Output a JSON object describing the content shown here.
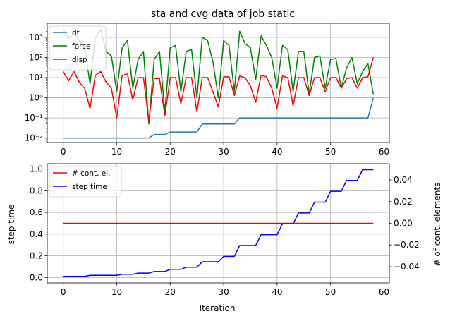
{
  "chart_data": [
    {
      "type": "line",
      "title": "sta and cvg data of job static",
      "xlabel": "",
      "ylabel": "",
      "yscale": "log",
      "xlim": [
        -3,
        61
      ],
      "ylim": [
        0.006,
        5000
      ],
      "grid": true,
      "legend_placement": "top-left",
      "x_ticks": [
        0,
        10,
        20,
        30,
        40,
        50,
        60
      ],
      "y_ticks": [
        0.01,
        0.1,
        1,
        10,
        100,
        1000
      ],
      "y_tick_labels": [
        "10⁻²",
        "10⁻¹",
        "10⁰",
        "10¹",
        "10²",
        "10³"
      ],
      "series": [
        {
          "name": "dt",
          "color": "#1f77b4",
          "x": [
            0,
            14,
            15,
            16,
            17,
            18,
            19,
            20,
            21,
            22,
            23,
            24,
            25,
            26,
            27,
            28,
            29,
            30,
            31,
            32,
            33,
            34,
            57,
            58
          ],
          "y": [
            0.01,
            0.01,
            0.01,
            0.01,
            0.015,
            0.015,
            0.015,
            0.02,
            0.02,
            0.02,
            0.02,
            0.02,
            0.02,
            0.05,
            0.05,
            0.05,
            0.05,
            0.05,
            0.05,
            0.05,
            0.1,
            0.1,
            0.1,
            1
          ]
        },
        {
          "name": "force",
          "color": "#008000",
          "x": [
            0,
            1,
            2,
            3,
            4,
            5,
            6,
            7,
            8,
            9,
            10,
            11,
            12,
            13,
            14,
            15,
            16,
            17,
            18,
            19,
            20,
            21,
            22,
            23,
            24,
            25,
            26,
            27,
            28,
            29,
            30,
            31,
            32,
            33,
            34,
            35,
            36,
            37,
            38,
            39,
            40,
            41,
            42,
            43,
            44,
            45,
            46,
            47,
            48,
            49,
            50,
            51,
            52,
            53,
            54,
            55,
            56,
            57,
            58
          ],
          "y": [
            2500,
            900,
            1600,
            700,
            300,
            5,
            1000,
            2500,
            200,
            120,
            2,
            300,
            700,
            3,
            80,
            200,
            0.05,
            80,
            200,
            0.2,
            300,
            400,
            2,
            200,
            250,
            1,
            1000,
            700,
            60,
            1,
            700,
            400,
            2,
            2000,
            500,
            300,
            8,
            1200,
            400,
            100,
            3,
            400,
            250,
            2,
            200,
            200,
            1.5,
            100,
            120,
            3,
            80,
            90,
            3,
            30,
            100,
            5,
            20,
            50,
            1.5
          ]
        },
        {
          "name": "disp",
          "color": "#ff0000",
          "x": [
            0,
            1,
            2,
            3,
            4,
            5,
            6,
            7,
            8,
            9,
            10,
            11,
            12,
            13,
            14,
            15,
            16,
            17,
            18,
            19,
            20,
            21,
            22,
            23,
            24,
            25,
            26,
            27,
            28,
            29,
            30,
            31,
            32,
            33,
            34,
            35,
            36,
            37,
            38,
            39,
            40,
            41,
            42,
            43,
            44,
            45,
            46,
            47,
            48,
            49,
            50,
            51,
            52,
            53,
            54,
            55,
            56,
            57,
            58
          ],
          "y": [
            20,
            7,
            20,
            6,
            3,
            0.3,
            13,
            20,
            6,
            3,
            0.1,
            13,
            15,
            0.8,
            10,
            10,
            0.07,
            9,
            9,
            0.13,
            10,
            10,
            0.5,
            10,
            10,
            0.2,
            10,
            10,
            2,
            0.35,
            11,
            11,
            1.3,
            12,
            10,
            4,
            0.6,
            13,
            11,
            3,
            0.3,
            12,
            10,
            0.4,
            10,
            10,
            1.3,
            10,
            10,
            2,
            10,
            10,
            3,
            9,
            10,
            3,
            10,
            11,
            100
          ]
        }
      ]
    },
    {
      "type": "line",
      "title": "",
      "xlabel": "Iteration",
      "ylabel": "step time",
      "y2label": "# of cont. elements",
      "xlim": [
        -3,
        61
      ],
      "ylim": [
        -0.05,
        1.05
      ],
      "y2lim": [
        -0.055,
        0.055
      ],
      "grid": true,
      "legend_placement": "top-left",
      "x_ticks": [
        0,
        10,
        20,
        30,
        40,
        50,
        60
      ],
      "y_ticks": [
        0.0,
        0.2,
        0.4,
        0.6,
        0.8,
        1.0
      ],
      "y_tick_labels": [
        "0.0",
        "0.2",
        "0.4",
        "0.6",
        "0.8",
        "1.0"
      ],
      "y2_ticks": [
        -0.04,
        -0.02,
        0.0,
        0.02,
        0.04
      ],
      "y2_tick_labels": [
        "−0.04",
        "−0.02",
        "0.00",
        "0.02",
        "0.04"
      ],
      "series": [
        {
          "name": "# cont. el.",
          "color": "#ff0000",
          "x": [
            0,
            58
          ],
          "y": [
            0.5,
            0.5
          ]
        },
        {
          "name": "step time",
          "color": "#0000ff",
          "x": [
            0,
            1,
            2,
            3,
            4,
            5,
            6,
            7,
            8,
            9,
            10,
            11,
            12,
            13,
            14,
            15,
            16,
            17,
            18,
            19,
            20,
            21,
            22,
            23,
            24,
            25,
            26,
            27,
            28,
            29,
            30,
            31,
            32,
            33,
            34,
            35,
            36,
            37,
            38,
            39,
            40,
            41,
            42,
            43,
            44,
            45,
            46,
            47,
            48,
            49,
            50,
            51,
            52,
            53,
            54,
            55,
            56,
            57,
            58
          ],
          "y": [
            0.01,
            0.01,
            0.01,
            0.01,
            0.01,
            0.02,
            0.02,
            0.02,
            0.02,
            0.02,
            0.02,
            0.03,
            0.03,
            0.03,
            0.04,
            0.04,
            0.04,
            0.055,
            0.055,
            0.055,
            0.075,
            0.075,
            0.075,
            0.095,
            0.095,
            0.095,
            0.145,
            0.145,
            0.145,
            0.145,
            0.195,
            0.195,
            0.195,
            0.295,
            0.295,
            0.295,
            0.295,
            0.395,
            0.395,
            0.395,
            0.395,
            0.495,
            0.495,
            0.495,
            0.595,
            0.595,
            0.595,
            0.695,
            0.695,
            0.695,
            0.795,
            0.795,
            0.795,
            0.895,
            0.895,
            0.895,
            0.995,
            0.995,
            0.995
          ]
        }
      ]
    }
  ]
}
